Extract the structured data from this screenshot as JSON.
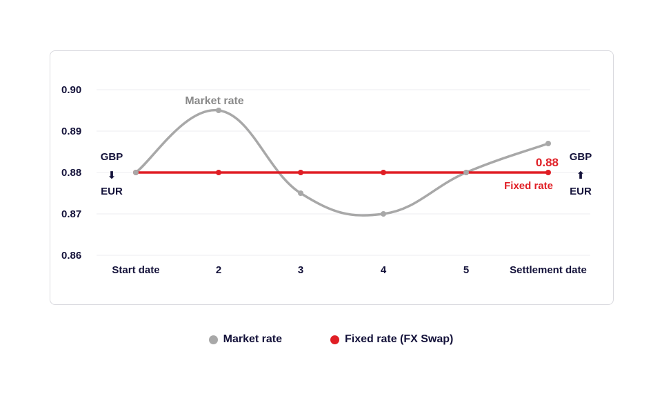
{
  "chart_data": {
    "type": "line",
    "categories": [
      "Start date",
      "2",
      "3",
      "4",
      "5",
      "Settlement date"
    ],
    "series": [
      {
        "name": "Market rate",
        "color": "#a8a8a8",
        "values": [
          0.88,
          0.895,
          0.875,
          0.87,
          0.88,
          0.887
        ]
      },
      {
        "name": "Fixed rate (FX Swap)",
        "color": "#e01e25",
        "values": [
          0.88,
          0.88,
          0.88,
          0.88,
          0.88,
          0.88
        ]
      }
    ],
    "ylim": [
      0.86,
      0.9
    ],
    "yticks": [
      "0.90",
      "0.89",
      "0.88",
      "0.87",
      "0.86"
    ],
    "grid": true,
    "annotations": {
      "market_label": "Market rate",
      "fixed_label": "Fixed rate",
      "fixed_value": "0.88",
      "left_pair": {
        "top": "GBP",
        "arrow": "⬇",
        "bottom": "EUR"
      },
      "right_pair": {
        "top": "GBP",
        "arrow": "⬆",
        "bottom": "EUR"
      }
    },
    "legend": [
      {
        "label": "Market rate",
        "color": "#a8a8a8"
      },
      {
        "label": "Fixed rate (FX Swap)",
        "color": "#e01e25"
      }
    ]
  }
}
